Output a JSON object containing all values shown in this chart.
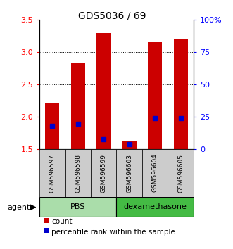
{
  "title": "GDS5036 / 69",
  "samples": [
    "GSM596597",
    "GSM596598",
    "GSM596599",
    "GSM596603",
    "GSM596604",
    "GSM596605"
  ],
  "count_values": [
    2.22,
    2.84,
    3.3,
    1.62,
    3.16,
    3.2
  ],
  "percentile_values": [
    18,
    20,
    8,
    4,
    24,
    24
  ],
  "bar_bottom": 1.5,
  "ylim_left": [
    1.5,
    3.5
  ],
  "ylim_right": [
    0,
    100
  ],
  "yticks_left": [
    1.5,
    2.0,
    2.5,
    3.0,
    3.5
  ],
  "yticks_right": [
    0,
    25,
    50,
    75,
    100
  ],
  "ytick_labels_right": [
    "0",
    "25",
    "50",
    "75",
    "100%"
  ],
  "agent_label": "agent",
  "bar_color": "#CC0000",
  "percentile_color": "#0000CC",
  "legend_count_label": "count",
  "legend_pct_label": "percentile rank within the sample",
  "pbs_color": "#AADDAA",
  "dexa_color": "#44BB44",
  "sample_box_color": "#CCCCCC",
  "bar_width": 0.55
}
